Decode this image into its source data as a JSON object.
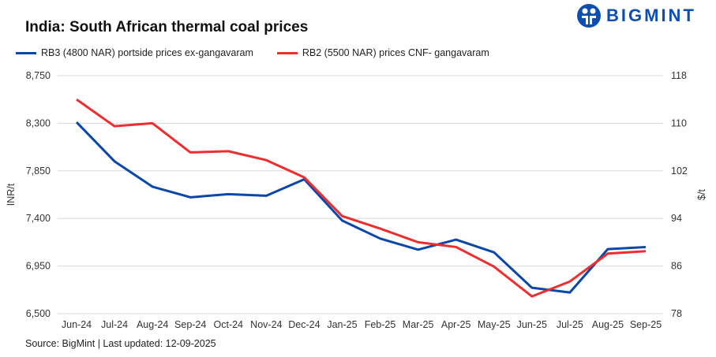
{
  "logo": {
    "text": "BIGMINT",
    "color": "#0d4fb0"
  },
  "source": "Source: BigMint | Last updated: 12-09-2025",
  "chart_data": {
    "type": "line",
    "title": "India: South African thermal coal prices",
    "categories": [
      "Jun-24",
      "Jul-24",
      "Aug-24",
      "Sep-24",
      "Oct-24",
      "Nov-24",
      "Dec-24",
      "Jan-25",
      "Feb-25",
      "Mar-25",
      "Apr-25",
      "May-25",
      "Jun-25",
      "Jul-25",
      "Aug-25",
      "Sep-25"
    ],
    "ylabel": "INR/t",
    "y2label": "$/t",
    "ylim": [
      6500,
      8750
    ],
    "yticks": [
      "8,750",
      "8,300",
      "7,850",
      "7,400",
      "6,950",
      "6,500"
    ],
    "y2lim": [
      78,
      118
    ],
    "y2ticks": [
      "118",
      "110",
      "102",
      "94",
      "86",
      "78"
    ],
    "grid": true,
    "legend_position": "top",
    "series": [
      {
        "name": "RB3 (4800 NAR) portside prices ex-gangavaram",
        "axis": "left",
        "color": "#0a47a8",
        "values": [
          8310,
          7940,
          7700,
          7600,
          7630,
          7615,
          7770,
          7380,
          7210,
          7105,
          7200,
          7080,
          6745,
          6700,
          7110,
          7130
        ]
      },
      {
        "name": "RB2 (5500 NAR) prices CNF- gangavaram",
        "axis": "right",
        "color": "#ee2e2e",
        "values": [
          114.0,
          109.5,
          110.0,
          105.1,
          105.3,
          103.8,
          100.9,
          94.4,
          92.3,
          90.0,
          89.2,
          85.9,
          80.9,
          83.4,
          88.1,
          88.5
        ]
      }
    ]
  }
}
